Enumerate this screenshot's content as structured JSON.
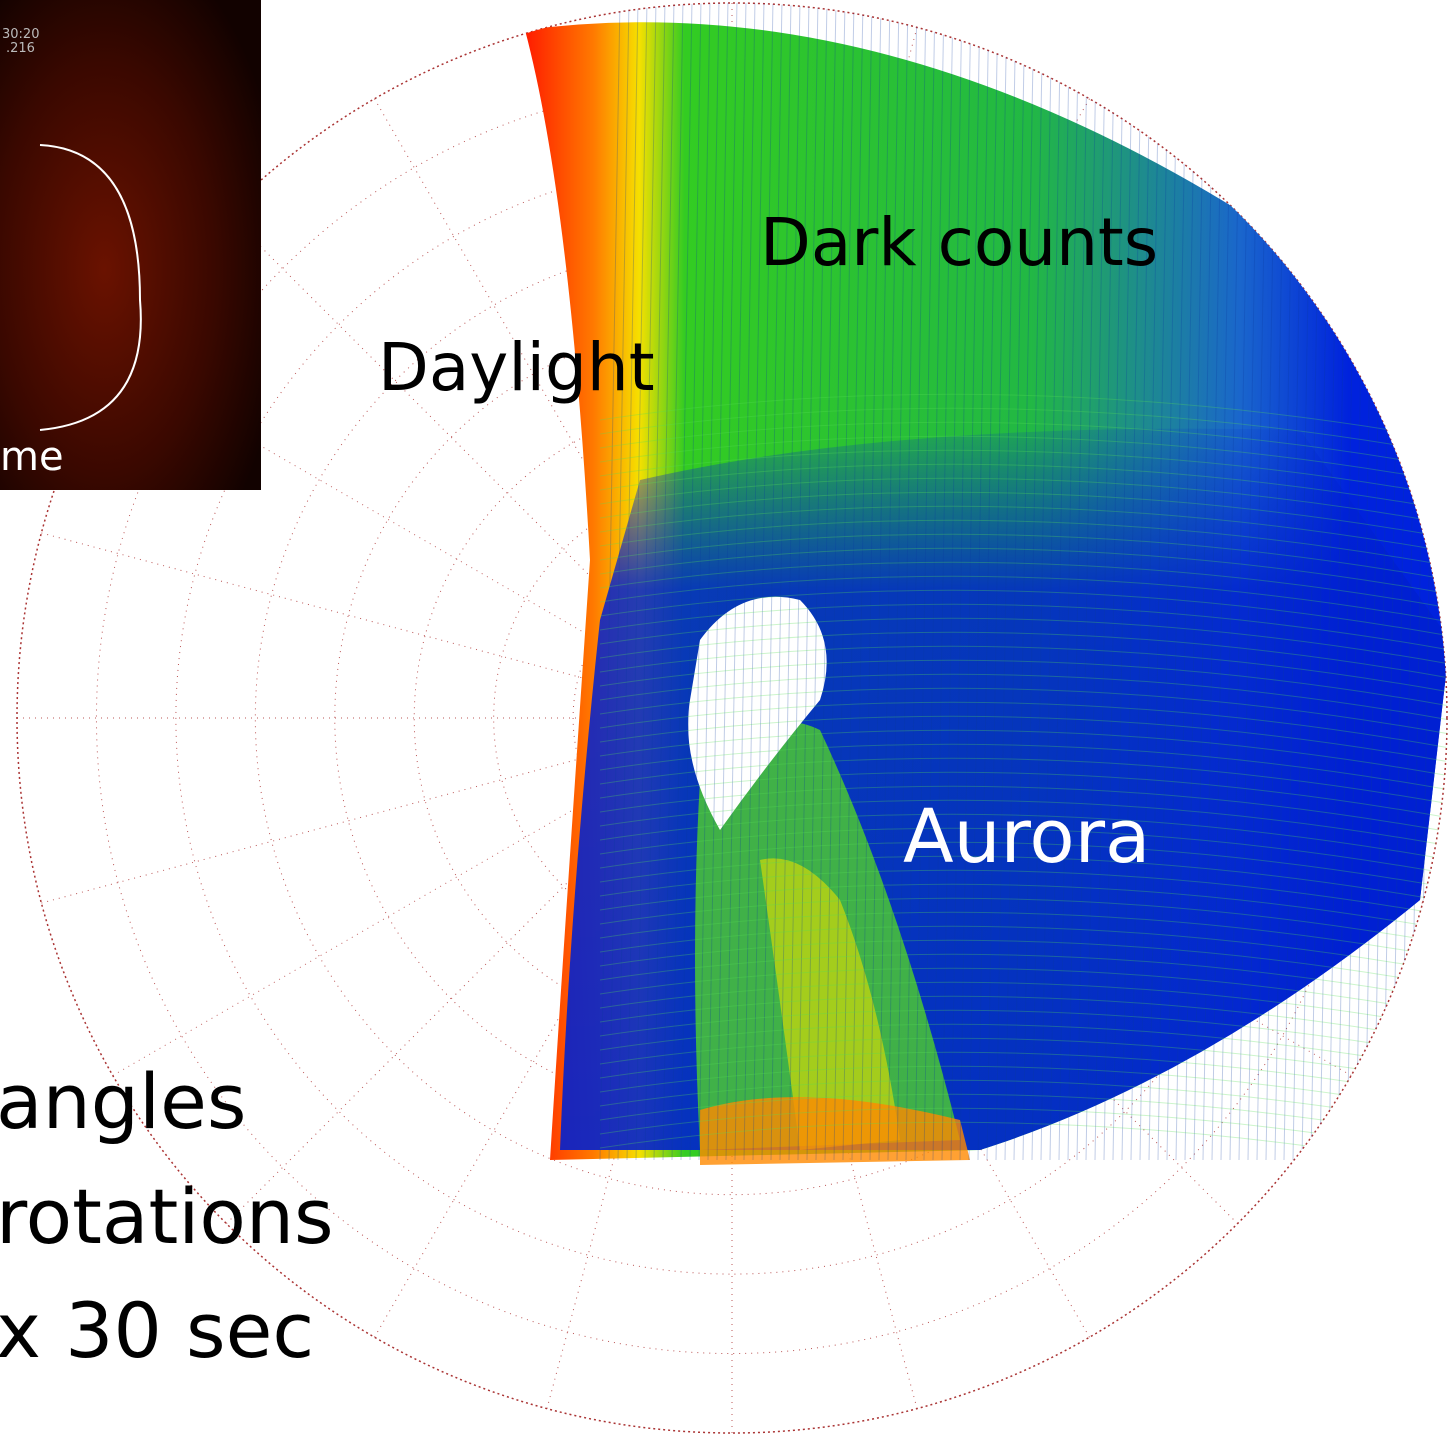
{
  "labels": {
    "dark": "Dark counts",
    "daylight": "Daylight",
    "aurora": "Aurora"
  },
  "side_text": {
    "line1": "angles",
    "line2": "rotations",
    "line3": "x 30 sec"
  },
  "inset": {
    "time": "30:20",
    "code": ".216",
    "caption": "me"
  }
}
